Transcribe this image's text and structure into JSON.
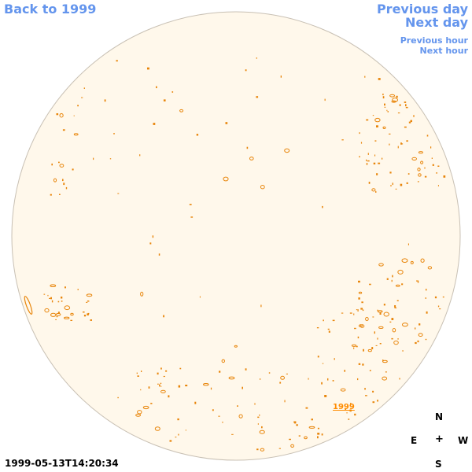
{
  "nav": {
    "back": "Back to 1999",
    "previous_day": "Previous day",
    "next_day": "Next day",
    "previous_hour": "Previous hour",
    "next_hour": "Next hour"
  },
  "disk": {
    "fill_color": "#FFF8EB",
    "border_color": "#C8C0B4",
    "contour_color": "#E8850A"
  },
  "region_label": "1999",
  "compass": {
    "north": "N",
    "east": "E",
    "center": "+",
    "west": "W",
    "south": "S"
  },
  "timestamp": "1999-05-13T14:20:34",
  "colors": {
    "link": "#6495ED",
    "region_link": "#FF8C00",
    "text": "#000000"
  }
}
